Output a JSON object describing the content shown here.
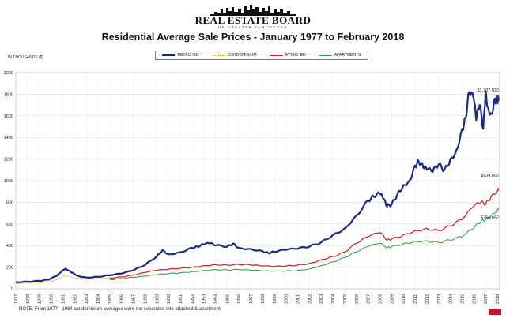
{
  "header": {
    "logo_text": "REAL ESTATE BOARD",
    "logo_sub": "OF GREATER VANCOUVER",
    "title": "Residential Average Sale Prices  -  January 1977 to February 2018",
    "unit_label": "IN THOUSANDS ($)"
  },
  "footer": {
    "note": "NOTE:  From 1977 - 1984 condominium averages were not separated into attached & apartment."
  },
  "colors": {
    "detached": "#1a2a80",
    "condominium": "#d4a017",
    "attached": "#d8232a",
    "apartments": "#2e9a3c"
  },
  "chart_data": {
    "type": "line",
    "title": "Residential Average Sale Prices  -  January 1977 to February 2018",
    "ylabel": "IN THOUSANDS ($)",
    "ylim": [
      0,
      2000
    ],
    "yticks": [
      0,
      200,
      400,
      600,
      800,
      1000,
      1200,
      1400,
      1600,
      1800,
      2000
    ],
    "xlim": [
      1977,
      2018.2
    ],
    "xticks": [
      "1977",
      "1978",
      "1979",
      "1980",
      "1981",
      "1982",
      "1983",
      "1984",
      "1985",
      "1986",
      "1987",
      "1988",
      "1989",
      "1990",
      "1991",
      "1992",
      "1993",
      "1994",
      "1995",
      "1996",
      "1997",
      "1998",
      "1999",
      "2000",
      "2001",
      "2002",
      "2003",
      "2004",
      "2005",
      "2006",
      "2007",
      "2008",
      "2009",
      "2010",
      "2011",
      "2012",
      "2013",
      "2014",
      "2015",
      "2016",
      "2017",
      "2018"
    ],
    "grid": true,
    "legend_position": "top-center",
    "series": [
      {
        "name": "DETACHED",
        "x": [
          1977,
          1978,
          1979,
          1979.8,
          1980.5,
          1980.9,
          1981.2,
          1981.5,
          1981.8,
          1982.3,
          1983,
          1984,
          1985,
          1986,
          1987,
          1988,
          1989,
          1989.5,
          1990,
          1991,
          1992,
          1992.5,
          1993,
          1993.5,
          1994,
          1995,
          1995.5,
          1996,
          1997,
          1998,
          1998.5,
          1999,
          2000,
          2001,
          2002,
          2003,
          2004,
          2005,
          2006,
          2007,
          2007.5,
          2008,
          2008.3,
          2008.6,
          2009,
          2009.5,
          2010,
          2010.5,
          2011,
          2011.3,
          2011.7,
          2012,
          2012.5,
          2013,
          2013.5,
          2014,
          2014.5,
          2015,
          2015.3,
          2015.6,
          2016,
          2016.2,
          2016.5,
          2016.8,
          2017,
          2017.2,
          2017.5,
          2017.8,
          2018,
          2018.1
        ],
        "values": [
          62,
          67,
          72,
          85,
          120,
          160,
          185,
          170,
          150,
          120,
          105,
          110,
          125,
          140,
          170,
          220,
          300,
          360,
          320,
          340,
          380,
          390,
          410,
          420,
          400,
          390,
          420,
          380,
          370,
          350,
          330,
          340,
          360,
          370,
          390,
          430,
          500,
          560,
          680,
          820,
          850,
          880,
          830,
          760,
          780,
          880,
          960,
          1000,
          1140,
          1180,
          1120,
          1100,
          1080,
          1150,
          1100,
          1200,
          1280,
          1480,
          1580,
          1820,
          1750,
          1560,
          1700,
          1480,
          1830,
          1680,
          1620,
          1760,
          1740,
          1737
        ]
      },
      {
        "name": "CONDOMINIUM",
        "x": [
          1977,
          1978,
          1979,
          1980,
          1980.5,
          1981,
          1981.5,
          1982,
          1983,
          1984,
          1985
        ],
        "values": [
          50,
          54,
          58,
          66,
          85,
          110,
          120,
          100,
          90,
          95,
          100
        ]
      },
      {
        "name": "ATTACHED",
        "x": [
          1985,
          1986,
          1987,
          1988,
          1989,
          1990,
          1991,
          1992,
          1993,
          1994,
          1995,
          1996,
          1997,
          1998,
          1999,
          2000,
          2001,
          2002,
          2003,
          2004,
          2005,
          2006,
          2007,
          2008,
          2008.6,
          2009,
          2010,
          2011,
          2012,
          2013,
          2014,
          2015,
          2016,
          2016.6,
          2017,
          2017.5,
          2018,
          2018.1
        ],
        "values": [
          100,
          110,
          125,
          150,
          170,
          180,
          190,
          200,
          215,
          225,
          220,
          225,
          220,
          210,
          205,
          210,
          220,
          235,
          270,
          300,
          340,
          420,
          480,
          520,
          450,
          460,
          500,
          540,
          560,
          540,
          580,
          640,
          760,
          800,
          780,
          860,
          920,
          934
        ]
      },
      {
        "name": "APARTMENTS",
        "x": [
          1985,
          1986,
          1987,
          1988,
          1989,
          1990,
          1991,
          1992,
          1993,
          1994,
          1995,
          1996,
          1997,
          1998,
          1999,
          2000,
          2001,
          2002,
          2003,
          2004,
          2005,
          2006,
          2007,
          2008,
          2008.6,
          2009,
          2010,
          2011,
          2012,
          2013,
          2014,
          2015,
          2016,
          2016.6,
          2017,
          2017.5,
          2018,
          2018.1
        ],
        "values": [
          85,
          95,
          105,
          115,
          130,
          140,
          148,
          158,
          170,
          178,
          175,
          178,
          172,
          165,
          162,
          165,
          170,
          185,
          215,
          250,
          290,
          340,
          390,
          420,
          380,
          390,
          420,
          440,
          445,
          430,
          450,
          480,
          560,
          620,
          640,
          680,
          740,
          750
        ]
      }
    ],
    "end_labels": [
      "$1,737,030",
      "$934,805",
      "$750,052"
    ]
  }
}
